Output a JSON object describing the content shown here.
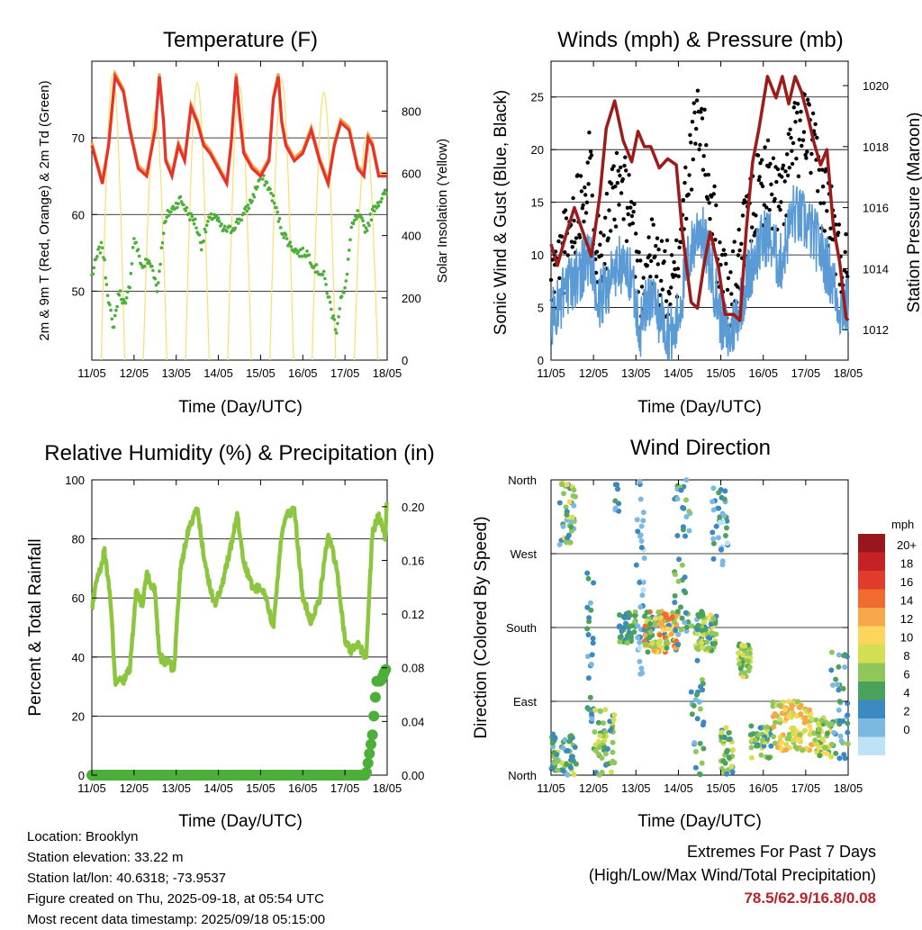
{
  "footer": {
    "location": "Location: Brooklyn",
    "elevation": "Station elevation: 33.22 m",
    "latlon": "Station lat/lon: 40.6318; -73.9537",
    "created": "Figure created on Thu, 2025-09-18, at 05:54 UTC",
    "recent": "Most recent data timestamp: 2025/09/18 05:15:00",
    "extremes_title": "Extremes For Past 7 Days",
    "extremes_sub": "(High/Low/Max Wind/Total Precipitation)",
    "extremes_values": "78.5/62.9/16.8/0.08"
  },
  "colors": {
    "temp2m": "#e8312a",
    "temp9m": "#f0a040",
    "dewpoint": "#4caf3a",
    "solar": "#f7df6a",
    "gust": "#000000",
    "wind": "#5b9bd5",
    "pressure": "#9e1b1b",
    "rh": "#8cc63f",
    "precip": "#4caf3a"
  },
  "chart_data": [
    {
      "type": "line",
      "title": "Temperature (F)",
      "xlabel": "Time (Day/UTC)",
      "ylabel": "2m & 9m T (Red, Orange) & 2m Td (Green)",
      "y2label": "Solar Insolation (Yellow)",
      "x_ticks": [
        "11/05",
        "12/05",
        "13/05",
        "14/05",
        "15/05",
        "16/05",
        "17/05",
        "18/05"
      ],
      "xlim": [
        0,
        7
      ],
      "ylim": [
        41,
        80
      ],
      "yticks": [
        50,
        60,
        70
      ],
      "y2lim": [
        0,
        960
      ],
      "y2ticks": [
        0,
        200,
        400,
        600,
        800
      ],
      "series": [
        {
          "key": "temp2m",
          "axis": "y",
          "x": [
            0,
            0.25,
            0.4,
            0.55,
            0.75,
            0.9,
            1.1,
            1.3,
            1.5,
            1.6,
            1.7,
            1.75,
            1.9,
            2.05,
            2.2,
            2.35,
            2.5,
            2.65,
            2.8,
            3.0,
            3.2,
            3.3,
            3.42,
            3.5,
            3.6,
            3.8,
            4.0,
            4.2,
            4.3,
            4.42,
            4.5,
            4.6,
            4.8,
            5.0,
            5.2,
            5.4,
            5.6,
            5.75,
            5.9,
            6.1,
            6.3,
            6.45,
            6.55,
            6.65,
            6.8,
            7.0
          ],
          "y": [
            69,
            64,
            69,
            78,
            76,
            71,
            66,
            65,
            71,
            78,
            72,
            67,
            65,
            69,
            67,
            74,
            72,
            69,
            68,
            66,
            64,
            69,
            78,
            73,
            68,
            66,
            65,
            67,
            75,
            78,
            72,
            69,
            67,
            68,
            71,
            67,
            64,
            69,
            72,
            71,
            66,
            65,
            70,
            69,
            65,
            65
          ]
        },
        {
          "key": "temp9m",
          "axis": "y",
          "x": [
            0,
            0.25,
            0.4,
            0.55,
            0.75,
            0.9,
            1.1,
            1.3,
            1.5,
            1.6,
            1.7,
            1.75,
            1.9,
            2.05,
            2.2,
            2.35,
            2.5,
            2.65,
            2.8,
            3.0,
            3.2,
            3.3,
            3.42,
            3.5,
            3.6,
            3.8,
            4.0,
            4.2,
            4.3,
            4.42,
            4.5,
            4.6,
            4.8,
            5.0,
            5.2,
            5.4,
            5.6,
            5.75,
            5.9,
            6.1,
            6.3,
            6.45,
            6.55,
            6.65,
            6.8,
            7.0
          ],
          "y": [
            69.4,
            64.4,
            69.4,
            78.4,
            76.4,
            71.4,
            66.4,
            65.4,
            71.4,
            78.4,
            72.4,
            67.4,
            65.4,
            69.4,
            67.4,
            74.4,
            72.4,
            69.4,
            68.4,
            66.4,
            64.4,
            69.4,
            78.4,
            73.4,
            68.4,
            66.4,
            65.4,
            67.4,
            75.4,
            78.4,
            72.4,
            69.4,
            67.4,
            68.4,
            71.4,
            67.4,
            64.4,
            69.4,
            72.4,
            71.4,
            66.4,
            65.4,
            70.4,
            69.4,
            65.4,
            65.4
          ]
        },
        {
          "key": "dewpoint",
          "axis": "y",
          "x": [
            0,
            0.15,
            0.25,
            0.35,
            0.5,
            0.65,
            0.8,
            0.9,
            1.0,
            1.1,
            1.2,
            1.3,
            1.45,
            1.55,
            1.7,
            1.8,
            1.95,
            2.1,
            2.3,
            2.45,
            2.6,
            2.75,
            2.9,
            3.1,
            3.3,
            3.45,
            3.6,
            3.8,
            4.0,
            4.15,
            4.3,
            4.5,
            4.7,
            4.9,
            5.1,
            5.3,
            5.5,
            5.7,
            5.8,
            5.9,
            6.0,
            6.15,
            6.3,
            6.5,
            6.7,
            6.85,
            7.0
          ],
          "y": [
            52,
            55,
            56,
            51,
            45,
            50,
            48,
            51,
            57,
            55,
            53,
            54,
            53,
            50,
            58,
            60,
            61,
            62,
            60,
            59,
            56,
            59,
            60,
            58,
            58,
            59,
            60,
            62,
            65,
            64,
            62,
            58,
            56,
            55,
            55,
            53,
            52,
            47,
            45,
            49,
            50,
            58,
            60,
            58,
            61,
            62,
            63
          ]
        },
        {
          "key": "solar",
          "axis": "y2",
          "days": [
            0.5,
            1.5,
            2.5,
            3.5,
            4.5,
            5.5,
            6.5
          ],
          "peaks": [
            920,
            800,
            890,
            880,
            900,
            860,
            720
          ]
        }
      ]
    },
    {
      "type": "line",
      "title": "Winds (mph) & Pressure (mb)",
      "xlabel": "Time (Day/UTC)",
      "ylabel": "Sonic Wind & Gust (Blue, Black)",
      "y2label": "Station Pressure (Maroon)",
      "x_ticks": [
        "11/05",
        "12/05",
        "13/05",
        "14/05",
        "15/05",
        "16/05",
        "17/05",
        "18/05"
      ],
      "xlim": [
        0,
        7
      ],
      "ylim": [
        0,
        28.4
      ],
      "yticks": [
        0,
        5,
        10,
        15,
        20,
        25
      ],
      "y2lim": [
        1011.0,
        1020.8
      ],
      "y2ticks": [
        1012,
        1014,
        1016,
        1018,
        1020
      ],
      "series": [
        {
          "key": "wind",
          "axis": "y",
          "x": [
            0,
            0.3,
            0.6,
            0.9,
            1.1,
            1.3,
            1.6,
            1.9,
            2.1,
            2.3,
            2.6,
            2.9,
            3.2,
            3.5,
            3.8,
            4.0,
            4.2,
            4.5,
            4.8,
            5.1,
            5.4,
            5.7,
            6.0,
            6.3,
            6.6,
            6.8,
            7.0
          ],
          "y": [
            4,
            6,
            8,
            10,
            5,
            7,
            9,
            8,
            3,
            6,
            4,
            2,
            9,
            13,
            8,
            4,
            2,
            6,
            10,
            12,
            9,
            14,
            13,
            11,
            8,
            5,
            5
          ]
        },
        {
          "key": "gust",
          "axis": "y",
          "x": [
            0,
            0.3,
            0.6,
            0.9,
            1.1,
            1.3,
            1.6,
            1.9,
            2.1,
            2.3,
            2.6,
            2.9,
            3.2,
            3.5,
            3.8,
            4.0,
            4.2,
            4.5,
            4.8,
            5.1,
            5.4,
            5.7,
            6.0,
            6.3,
            6.6,
            6.8,
            7.0
          ],
          "y": [
            6,
            10,
            14,
            18,
            10,
            12,
            16,
            14,
            6,
            10,
            8,
            6,
            17,
            23,
            14,
            8,
            5,
            10,
            15,
            17,
            14,
            20,
            22,
            17,
            13,
            9,
            8
          ]
        },
        {
          "key": "pressure",
          "axis": "y2",
          "x": [
            0,
            0.15,
            0.35,
            0.55,
            0.75,
            0.95,
            1.15,
            1.3,
            1.5,
            1.7,
            1.9,
            2.05,
            2.2,
            2.35,
            2.55,
            2.75,
            2.95,
            3.1,
            3.3,
            3.45,
            3.6,
            3.75,
            3.95,
            4.1,
            4.3,
            4.45,
            4.6,
            4.75,
            4.9,
            5.1,
            5.3,
            5.45,
            5.6,
            5.75,
            5.9,
            6.05,
            6.2,
            6.35,
            6.5,
            6.65,
            6.8,
            6.95,
            7.0
          ],
          "y": [
            1014.8,
            1014.1,
            1015.1,
            1016.0,
            1015.2,
            1014.4,
            1016.4,
            1018.6,
            1019.5,
            1018.2,
            1017.5,
            1018.5,
            1018.0,
            1018.0,
            1017.3,
            1017.6,
            1017.4,
            1015.1,
            1012.9,
            1012.7,
            1014.1,
            1015.2,
            1014.0,
            1012.5,
            1012.5,
            1012.3,
            1015.3,
            1017.5,
            1018.6,
            1020.3,
            1019.6,
            1020.3,
            1019.4,
            1020.3,
            1019.8,
            1019.0,
            1018.1,
            1017.4,
            1017.9,
            1015.4,
            1014.2,
            1012.4,
            1012.3
          ]
        }
      ]
    },
    {
      "type": "line",
      "title": "Relative Humidity (%) & Precipitation (in)",
      "xlabel": "Time (Day/UTC)",
      "ylabel": "Percent & Total Rainfall",
      "x_ticks": [
        "11/05",
        "12/05",
        "13/05",
        "14/05",
        "15/05",
        "16/05",
        "17/05",
        "18/05"
      ],
      "xlim": [
        0,
        7
      ],
      "ylim": [
        0,
        100
      ],
      "yticks": [
        0,
        20,
        40,
        60,
        80,
        100
      ],
      "y2lim": [
        0,
        0.22
      ],
      "y2ticks": [
        "0.00",
        "0.04",
        "0.08",
        "0.12",
        "0.16",
        "0.20"
      ],
      "series": [
        {
          "key": "rh",
          "axis": "y",
          "x": [
            0,
            0.1,
            0.2,
            0.3,
            0.45,
            0.55,
            0.75,
            0.9,
            1.05,
            1.2,
            1.3,
            1.5,
            1.6,
            1.8,
            1.95,
            2.1,
            2.3,
            2.5,
            2.7,
            2.9,
            3.05,
            3.3,
            3.45,
            3.6,
            3.8,
            4.1,
            4.3,
            4.5,
            4.6,
            4.8,
            5.0,
            5.2,
            5.4,
            5.6,
            5.8,
            6.0,
            6.15,
            6.3,
            6.5,
            6.65,
            6.8,
            6.95,
            7.0
          ],
          "y": [
            56,
            66,
            70,
            76,
            58,
            32,
            32,
            36,
            62,
            58,
            68,
            62,
            40,
            38,
            36,
            70,
            84,
            90,
            70,
            58,
            62,
            78,
            88,
            72,
            64,
            62,
            50,
            82,
            88,
            90,
            60,
            52,
            60,
            82,
            70,
            46,
            42,
            44,
            40,
            82,
            88,
            80,
            95
          ]
        },
        {
          "key": "precip",
          "axis": "y2",
          "x": [
            0,
            1,
            2,
            3,
            4,
            5,
            6,
            6.45,
            6.5,
            6.55,
            6.6,
            6.65,
            6.7,
            6.75,
            6.85,
            6.95,
            7.0
          ],
          "y": [
            0,
            0,
            0,
            0,
            0,
            0,
            0,
            0,
            0,
            0.01,
            0.02,
            0.03,
            0.05,
            0.07,
            0.07,
            0.078,
            0.08
          ]
        }
      ]
    },
    {
      "type": "scatter",
      "title": "Wind Direction",
      "xlabel": "Time (Day/UTC)",
      "ylabel": "Direction (Colored By Speed)",
      "x_ticks": [
        "11/05",
        "12/05",
        "13/05",
        "14/05",
        "15/05",
        "16/05",
        "17/05",
        "18/05"
      ],
      "xlim": [
        0,
        7
      ],
      "y_ticks": [
        "North",
        "East",
        "South",
        "West",
        "North"
      ],
      "ylim": [
        0,
        360
      ],
      "legend_title": "mph",
      "legend_labels": [
        "20+",
        "18",
        "16",
        "14",
        "12",
        "10",
        "8",
        "6",
        "4",
        "2",
        "0"
      ],
      "legend_colors": [
        "#99171c",
        "#c62125",
        "#e23b2c",
        "#f06b2d",
        "#f7a64a",
        "#fbd55c",
        "#d4de52",
        "#8fc75a",
        "#4ba35b",
        "#3b89c2",
        "#7cb9e2",
        "#bfe2f7"
      ],
      "clusters": [
        {
          "x": [
            0.0,
            0.6
          ],
          "dir": [
            0,
            50
          ],
          "speed": [
            2,
            10
          ],
          "n": 60
        },
        {
          "x": [
            0.2,
            0.6
          ],
          "dir": [
            280,
            360
          ],
          "speed": [
            2,
            12
          ],
          "n": 40
        },
        {
          "x": [
            0.85,
            1.0
          ],
          "dir": [
            60,
            250
          ],
          "speed": [
            2,
            6
          ],
          "n": 25
        },
        {
          "x": [
            1.0,
            1.5
          ],
          "dir": [
            0,
            80
          ],
          "speed": [
            4,
            10
          ],
          "n": 50
        },
        {
          "x": [
            1.5,
            1.6
          ],
          "dir": [
            320,
            360
          ],
          "speed": [
            2,
            6
          ],
          "n": 8
        },
        {
          "x": [
            1.6,
            2.0
          ],
          "dir": [
            160,
            200
          ],
          "speed": [
            3,
            8
          ],
          "n": 40
        },
        {
          "x": [
            2.0,
            2.2
          ],
          "dir": [
            100,
            360
          ],
          "speed": [
            0,
            4
          ],
          "n": 35
        },
        {
          "x": [
            2.2,
            3.0
          ],
          "dir": [
            150,
            200
          ],
          "speed": [
            4,
            17
          ],
          "n": 120
        },
        {
          "x": [
            2.9,
            3.3
          ],
          "dir": [
            150,
            360
          ],
          "speed": [
            2,
            8
          ],
          "n": 45
        },
        {
          "x": [
            3.3,
            3.6
          ],
          "dir": [
            0,
            200
          ],
          "speed": [
            2,
            8
          ],
          "n": 30
        },
        {
          "x": [
            3.4,
            3.9
          ],
          "dir": [
            150,
            200
          ],
          "speed": [
            4,
            12
          ],
          "n": 60
        },
        {
          "x": [
            3.8,
            4.2
          ],
          "dir": [
            250,
            350
          ],
          "speed": [
            0,
            6
          ],
          "n": 35
        },
        {
          "x": [
            4.0,
            4.3
          ],
          "dir": [
            0,
            60
          ],
          "speed": [
            4,
            10
          ],
          "n": 40
        },
        {
          "x": [
            4.4,
            4.7
          ],
          "dir": [
            120,
            160
          ],
          "speed": [
            6,
            12
          ],
          "n": 50
        },
        {
          "x": [
            4.7,
            5.2
          ],
          "dir": [
            20,
            60
          ],
          "speed": [
            4,
            10
          ],
          "n": 40
        },
        {
          "x": [
            5.2,
            6.2
          ],
          "dir": [
            30,
            90
          ],
          "speed": [
            8,
            15
          ],
          "n": 110
        },
        {
          "x": [
            6.2,
            6.6
          ],
          "dir": [
            20,
            70
          ],
          "speed": [
            6,
            12
          ],
          "n": 45
        },
        {
          "x": [
            6.6,
            7.0
          ],
          "dir": [
            20,
            150
          ],
          "speed": [
            2,
            8
          ],
          "n": 40
        }
      ]
    }
  ]
}
